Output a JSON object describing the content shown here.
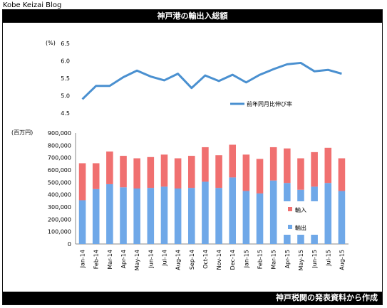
{
  "page": {
    "blog_name": "Kobe Keizai Blog",
    "title": "神戸港の輸出入総額",
    "footer": "神戸税関の発表資料から作成"
  },
  "colors": {
    "line": "#4A90D0",
    "exports": "#6FA8E8",
    "imports": "#F07070",
    "axis": "#888888"
  },
  "chart_data": [
    {
      "type": "line",
      "ylabel": "(%)",
      "ylim": [
        4.5,
        6.5
      ],
      "yticks": [
        "6.5",
        "6.0",
        "5.5",
        "5.0",
        "4.5"
      ],
      "yticks_values": [
        6.5,
        6.0,
        5.5,
        5.0,
        4.5
      ],
      "categories": [
        "Jan-14",
        "Feb-14",
        "Mar-14",
        "Apr-14",
        "May-14",
        "Jun-14",
        "Jul-14",
        "Aug-14",
        "Sep-14",
        "Oct-14",
        "Nov-14",
        "Dec-14",
        "Jan-15",
        "Feb-15",
        "Mar-15",
        "Apr-15",
        "May-15",
        "Jun-15",
        "Jul-15",
        "Aug-15"
      ],
      "series": [
        {
          "name": "前年同月比伸び率",
          "values": [
            4.9,
            5.28,
            5.28,
            5.53,
            5.72,
            5.55,
            5.44,
            5.63,
            5.22,
            5.58,
            5.42,
            5.6,
            5.38,
            5.6,
            5.76,
            5.9,
            5.94,
            5.7,
            5.74,
            5.63
          ]
        }
      ],
      "legend": "center-right",
      "grid": false
    },
    {
      "type": "bar",
      "stacked": true,
      "ylabel": "(百万円)",
      "ylim": [
        0,
        900000
      ],
      "yticks": [
        "900,000",
        "800,000",
        "700,000",
        "600,000",
        "500,000",
        "400,000",
        "300,000",
        "200,000",
        "100,000",
        "0"
      ],
      "yticks_values": [
        900000,
        800000,
        700000,
        600000,
        500000,
        400000,
        300000,
        200000,
        100000,
        0
      ],
      "categories": [
        "Jan-14",
        "Feb-14",
        "Mar-14",
        "Apr-14",
        "May-14",
        "Jun-14",
        "Jul-14",
        "Aug-14",
        "Sep-14",
        "Oct-14",
        "Nov-14",
        "Dec-14",
        "Jan-15",
        "Feb-15",
        "Mar-15",
        "Apr-15",
        "May-15",
        "Jun-15",
        "Jul-15",
        "Aug-15"
      ],
      "series": [
        {
          "name": "輸出",
          "values": [
            355000,
            445000,
            485000,
            460000,
            450000,
            455000,
            465000,
            450000,
            455000,
            505000,
            455000,
            540000,
            430000,
            410000,
            515000,
            495000,
            440000,
            465000,
            495000,
            430000
          ]
        },
        {
          "name": "輸入",
          "values": [
            300000,
            210000,
            265000,
            255000,
            245000,
            250000,
            260000,
            245000,
            260000,
            280000,
            265000,
            265000,
            295000,
            280000,
            270000,
            280000,
            255000,
            280000,
            285000,
            265000
          ]
        }
      ],
      "legend": "bottom-right",
      "grid": false
    }
  ]
}
